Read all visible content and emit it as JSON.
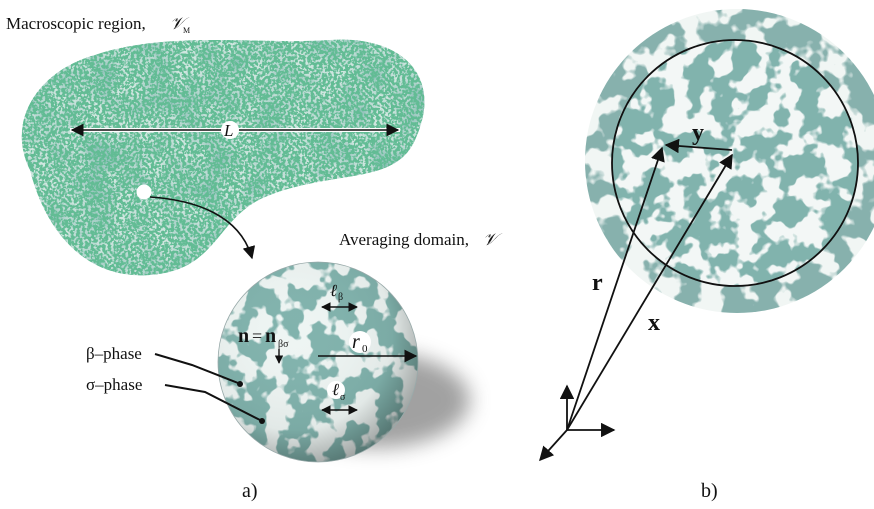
{
  "panel_a": {
    "title": "Macroscopic region,",
    "title_symbol": "𝒱",
    "title_symbol_sub": "M",
    "length_label": "L",
    "averaging_label": "Averaging domain,",
    "averaging_symbol": "𝒱",
    "l_beta": "ℓ",
    "l_beta_sub": "β",
    "normal_n": "n",
    "normal_eq": "=",
    "normal_n2": "n",
    "normal_sub": "βσ",
    "radius": "r",
    "radius_sub": "0",
    "beta_phase": "β–phase",
    "sigma_phase": "σ–phase",
    "l_sigma": "ℓ",
    "l_sigma_sub": "σ",
    "caption": "a)"
  },
  "panel_b": {
    "y_label": "y",
    "r_label": "r",
    "x_label": "x",
    "caption": "b)"
  },
  "colors": {
    "teal_dark": "#2f6f66",
    "teal_mid": "#5f9f93",
    "teal_light": "#bfe0d8",
    "green_speck": "#2f8a4f",
    "ink": "#111111"
  }
}
